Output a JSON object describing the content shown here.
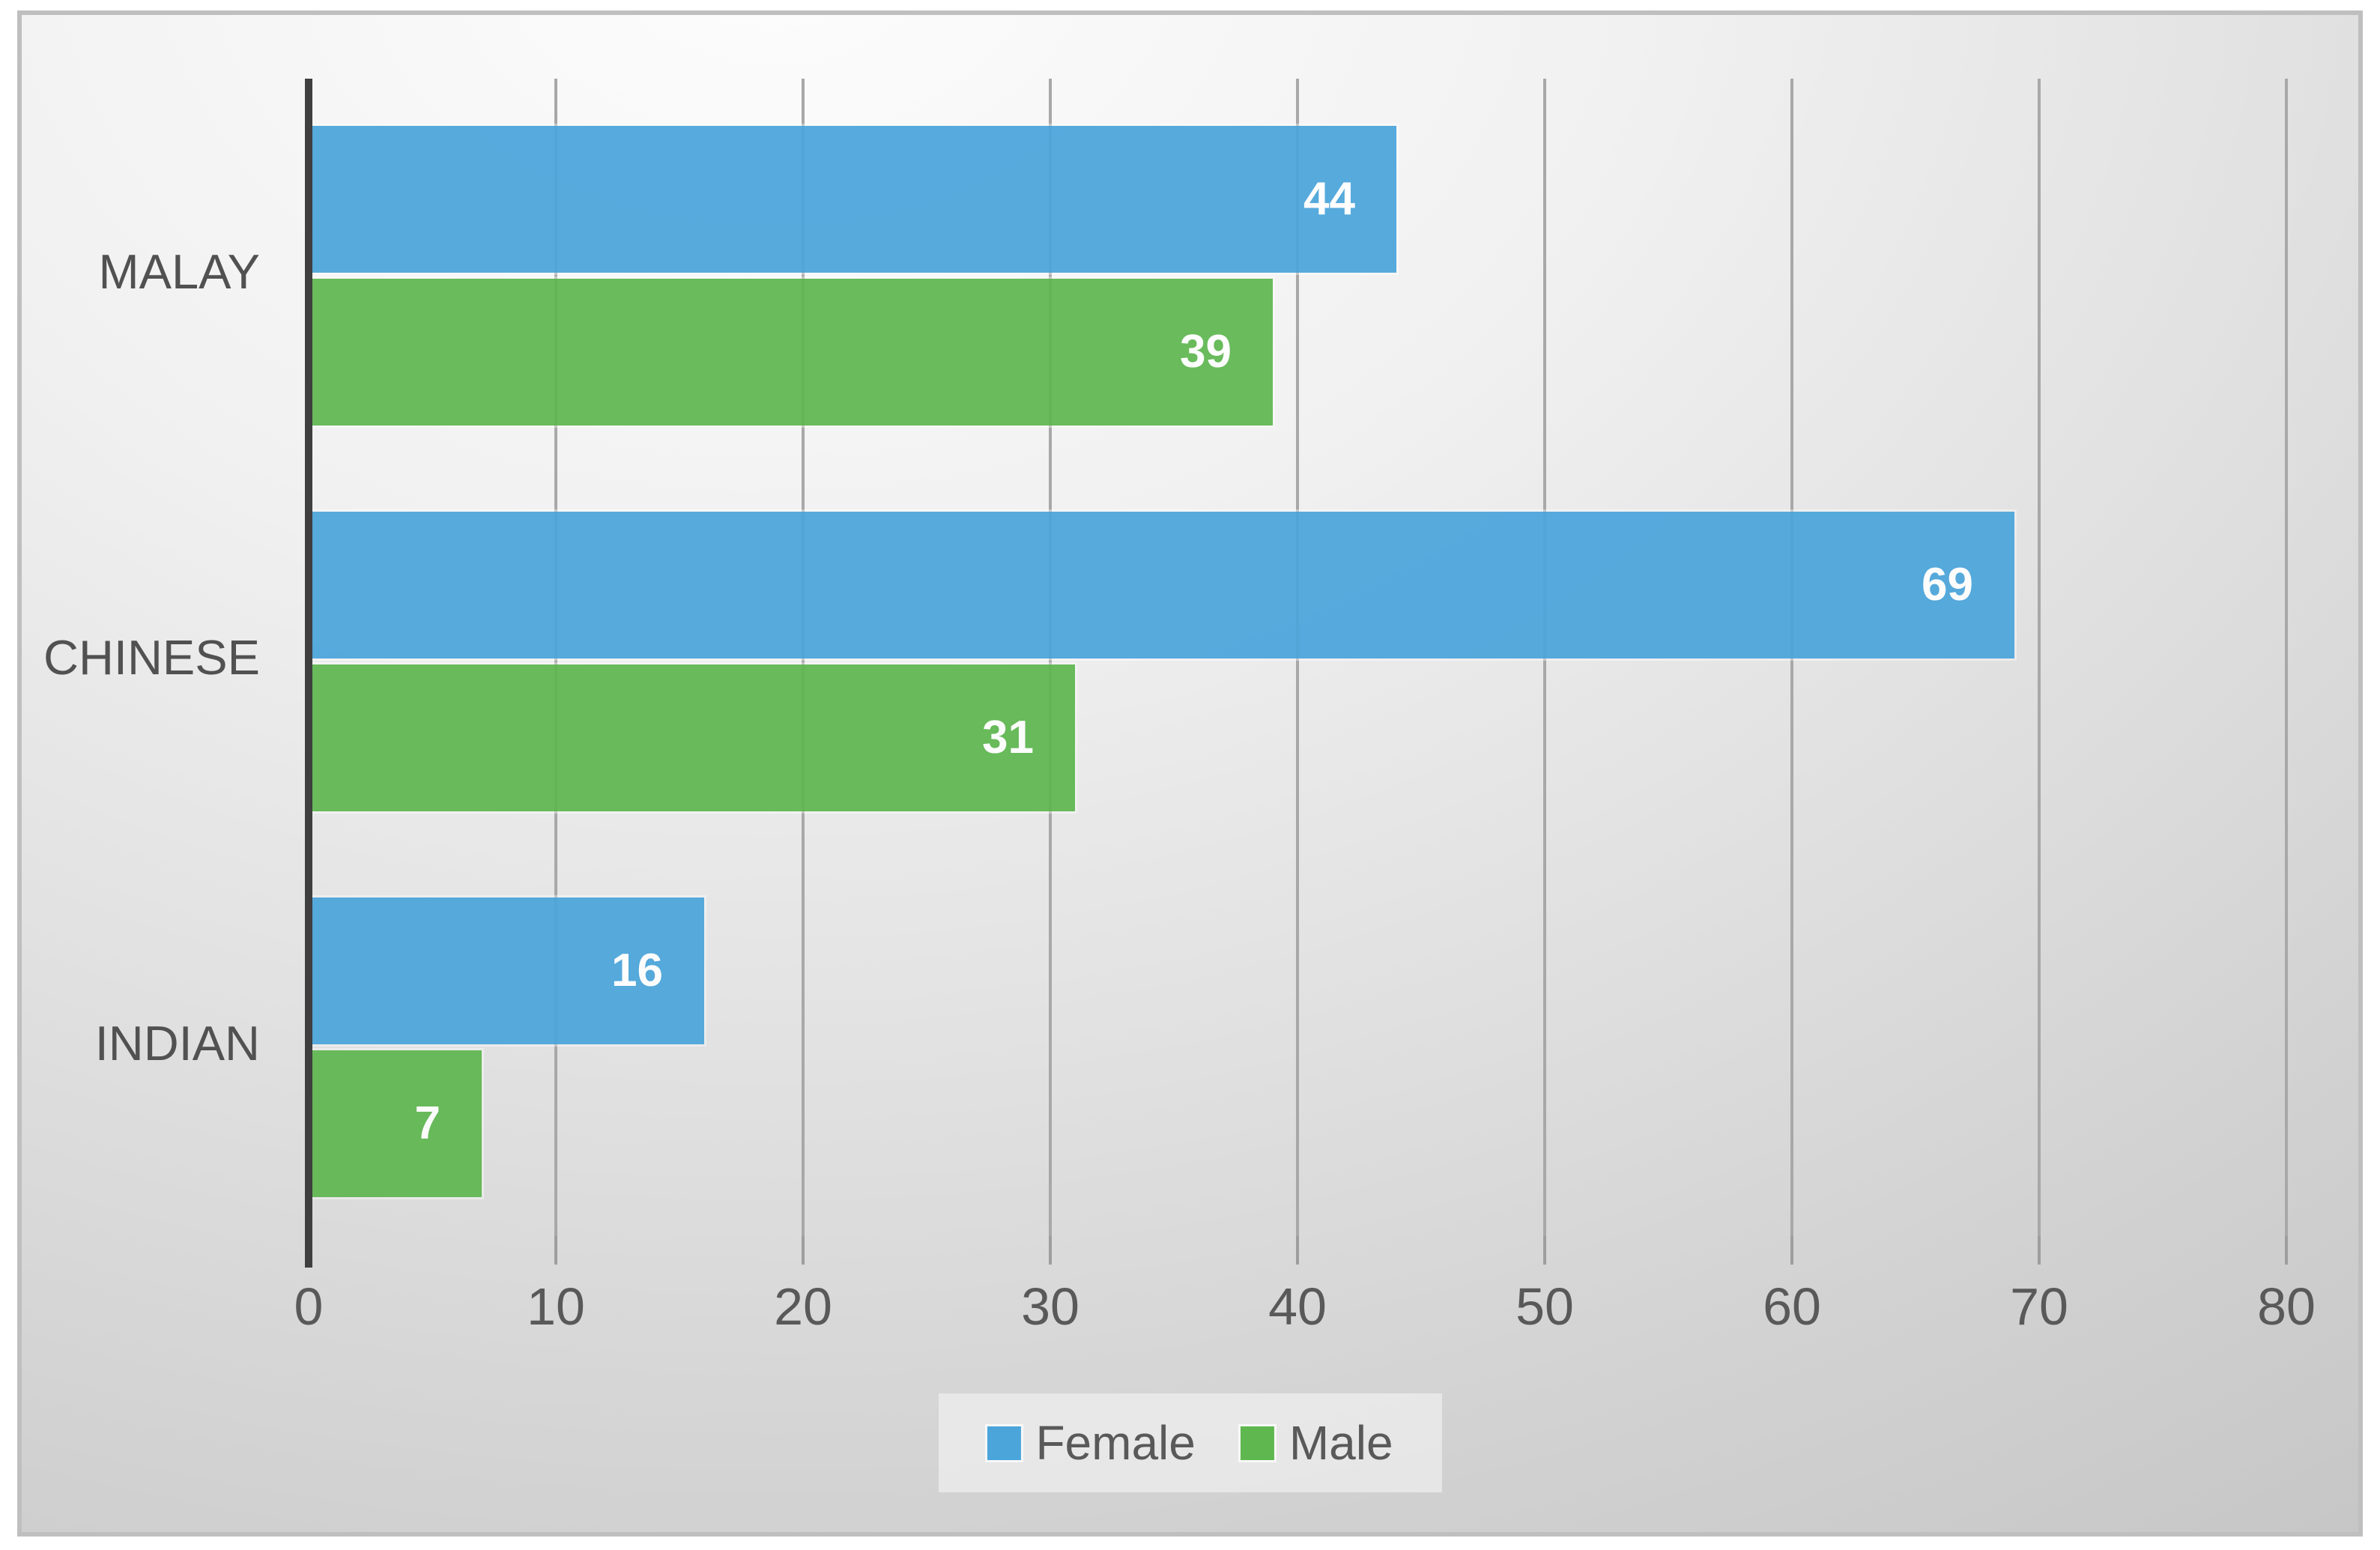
{
  "chart_data": {
    "type": "bar",
    "orientation": "horizontal",
    "title": "",
    "xlabel": "",
    "ylabel": "",
    "categories": [
      "MALAY",
      "CHINESE",
      "INDIAN"
    ],
    "series": [
      {
        "name": "Female",
        "color": "#4BA5DB",
        "values": [
          44,
          69,
          16
        ]
      },
      {
        "name": "Male",
        "color": "#5FB750",
        "values": [
          39,
          31,
          7
        ]
      }
    ],
    "xlim": [
      0,
      80
    ],
    "x_ticks": [
      0,
      10,
      20,
      30,
      40,
      50,
      60,
      70,
      80
    ],
    "grid": true,
    "data_labels": "inside-end",
    "legend_position": "bottom",
    "colors": {
      "axis_line": "#3f3f3f",
      "gridline": "#a8a8a8",
      "tick_mark": "#9e9e9e",
      "tick_text": "#595959",
      "category_text": "#515151",
      "value_label_text": "#ffffff",
      "frame_border": "#bfbfbf",
      "background_top": "#fdfdfd",
      "background_bottom": "#c2c2c2"
    }
  }
}
